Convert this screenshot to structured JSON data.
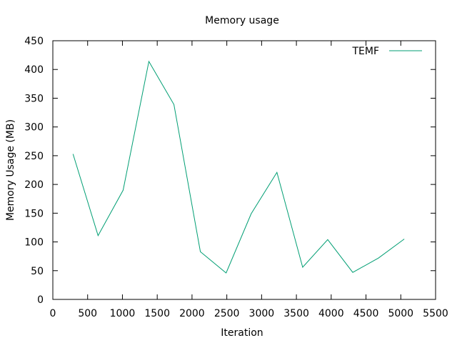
{
  "chart_data": {
    "type": "line",
    "title": "Memory usage",
    "xlabel": "Iteration",
    "ylabel": "Memory Usage (MB)",
    "xlim": [
      0,
      5500
    ],
    "ylim": [
      0,
      450
    ],
    "xticks": [
      0,
      500,
      1000,
      1500,
      2000,
      2500,
      3000,
      3500,
      4000,
      4500,
      5000,
      5500
    ],
    "yticks": [
      0,
      50,
      100,
      150,
      200,
      250,
      300,
      350,
      400,
      450
    ],
    "grid": false,
    "legend_position": "top-right",
    "series": [
      {
        "name": "TEMF",
        "color": "#009E73",
        "x": [
          290,
          650,
          1010,
          1380,
          1740,
          2120,
          2490,
          2850,
          3220,
          3590,
          3950,
          4310,
          4680,
          5050
        ],
        "y": [
          253,
          111,
          190,
          414,
          339,
          83,
          46,
          149,
          221,
          56,
          104,
          47,
          72,
          105
        ]
      }
    ]
  }
}
